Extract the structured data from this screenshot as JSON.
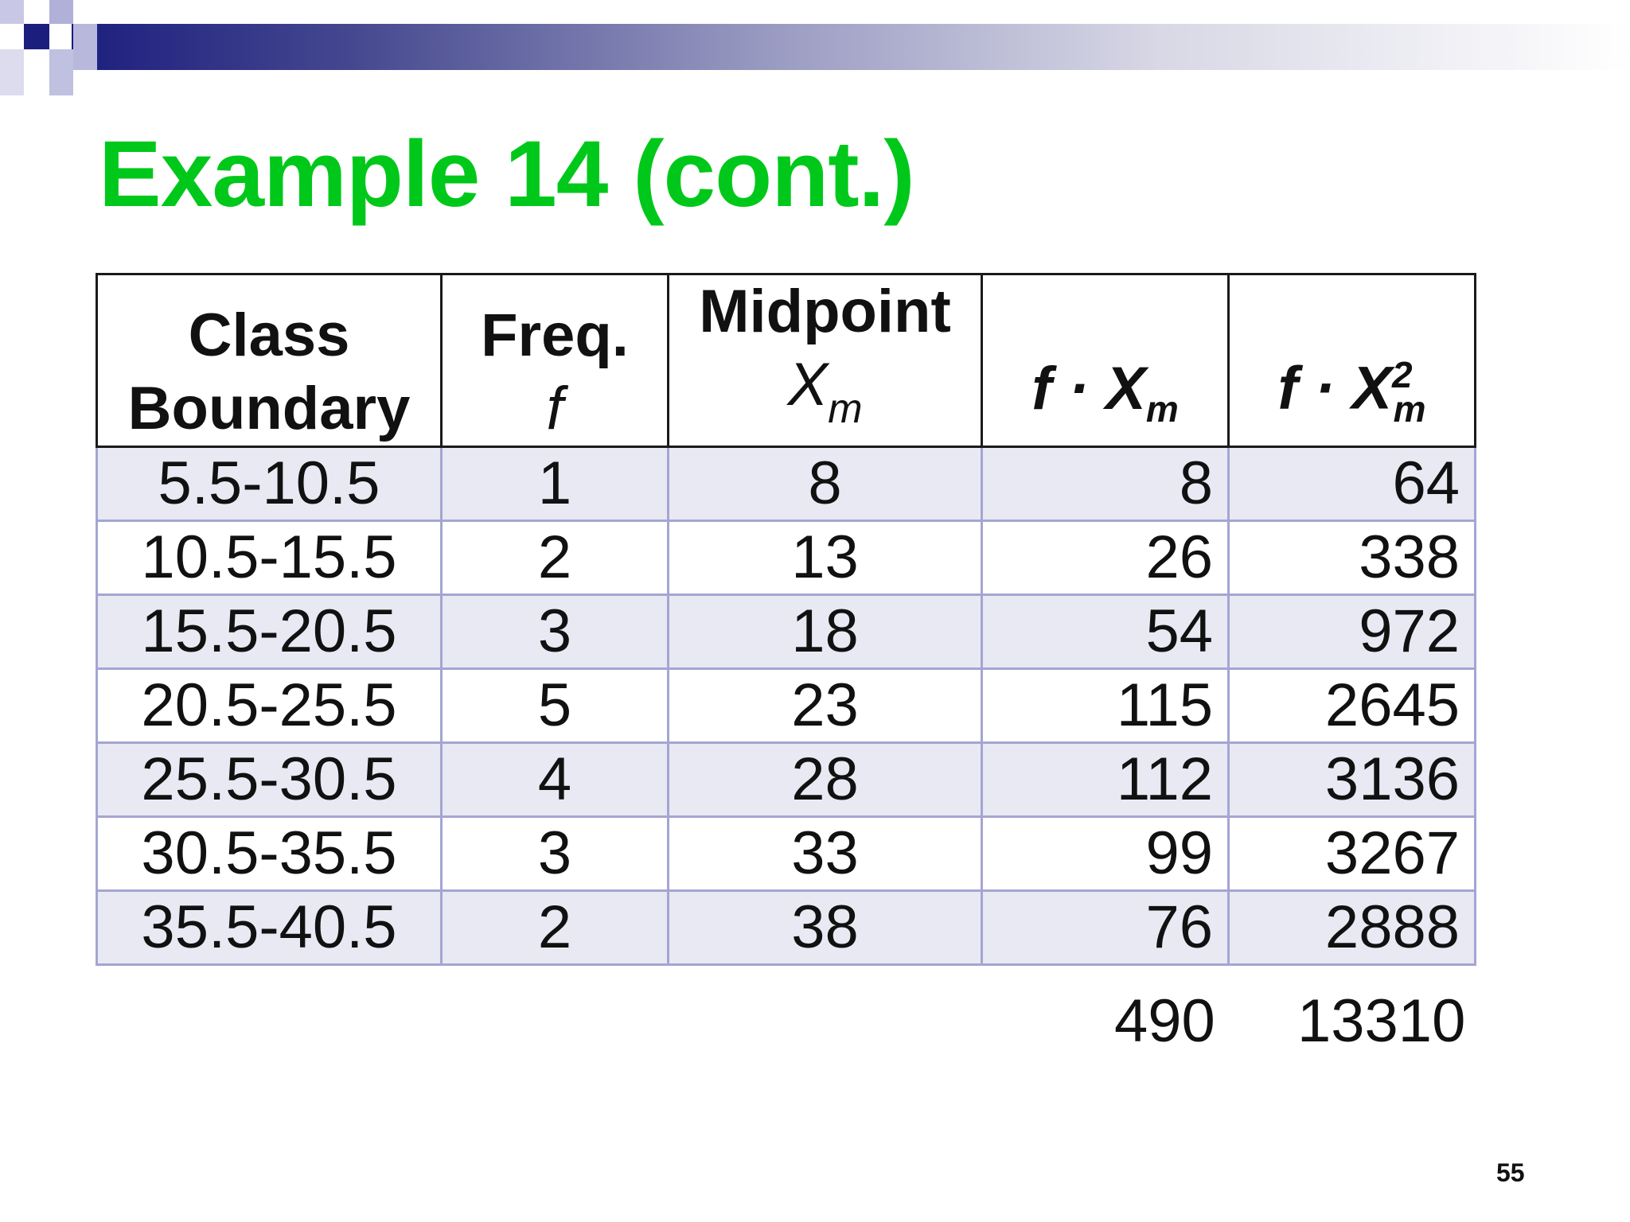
{
  "colors": {
    "title": "#00c81a",
    "row_shade": "#e8e9f3",
    "grid": "#a5a5d2",
    "band_dark": "#1c1e7e"
  },
  "slide": {
    "title": "Example 14 (cont.)",
    "page_number": "55"
  },
  "table": {
    "headers": [
      {
        "label": "Class",
        "label2": "Boundary",
        "symbol": ""
      },
      {
        "label": "Freq.",
        "label2": "",
        "symbol": "f"
      },
      {
        "label": "Midpoint",
        "label2": "",
        "symbol": "X",
        "symbol_sub": "m"
      },
      {
        "ghost": "f · X",
        "ghost_sub": "m"
      },
      {
        "ghost": "f · X",
        "ghost_sub": "m",
        "ghost_sup": "2"
      }
    ],
    "rows": [
      [
        "5.5-10.5",
        "1",
        "8",
        "8",
        "64"
      ],
      [
        "10.5-15.5",
        "2",
        "13",
        "26",
        "338"
      ],
      [
        "15.5-20.5",
        "3",
        "18",
        "54",
        "972"
      ],
      [
        "20.5-25.5",
        "5",
        "23",
        "115",
        "2645"
      ],
      [
        "25.5-30.5",
        "4",
        "28",
        "112",
        "3136"
      ],
      [
        "30.5-35.5",
        "3",
        "33",
        "99",
        "3267"
      ],
      [
        "35.5-40.5",
        "2",
        "38",
        "76",
        "2888"
      ]
    ],
    "totals": {
      "fx": "490",
      "fx2": "13310"
    }
  }
}
